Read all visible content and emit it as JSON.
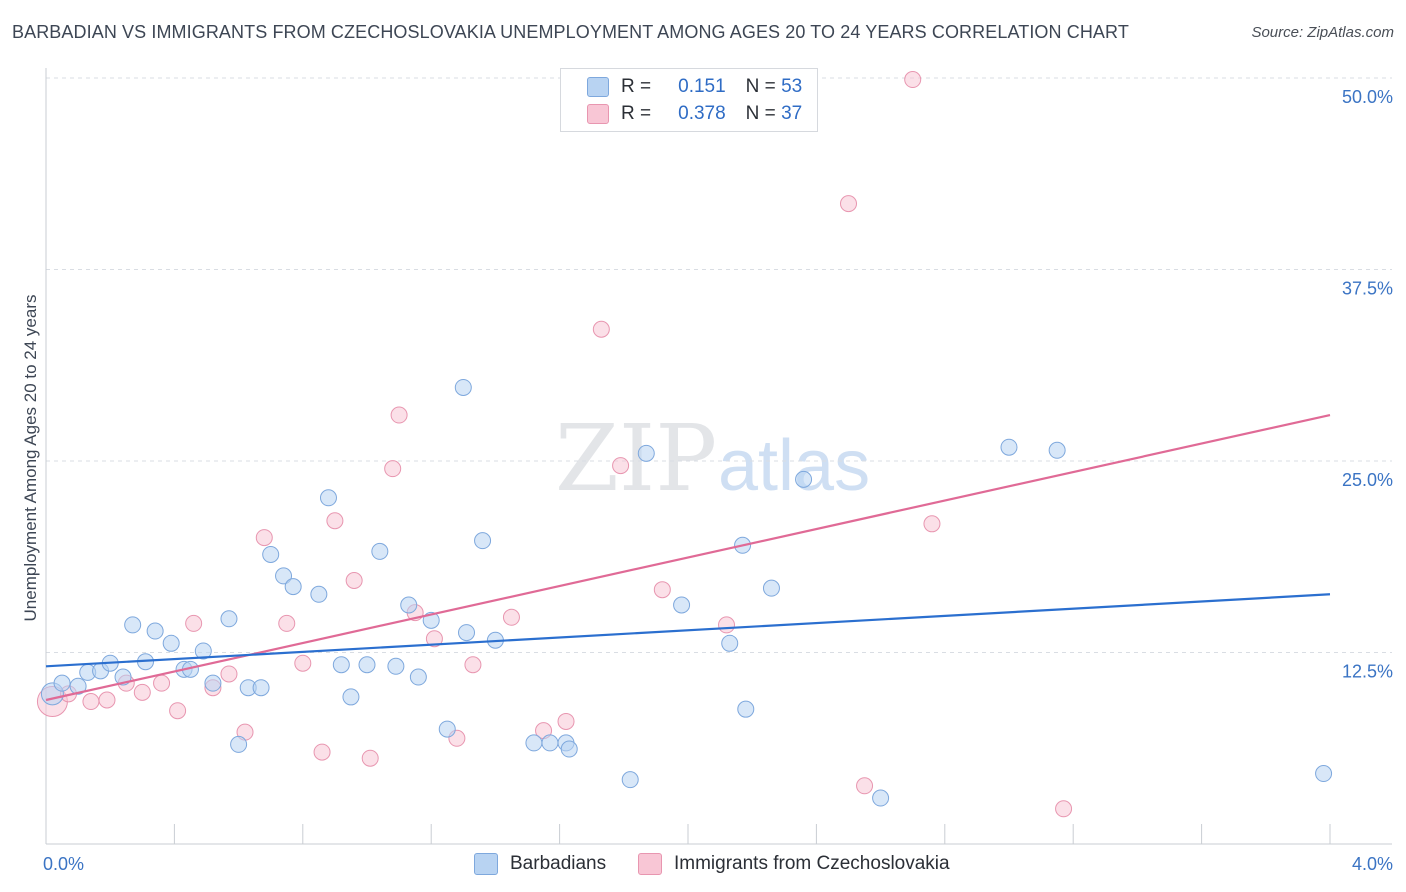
{
  "title": "BARBADIAN VS IMMIGRANTS FROM CZECHOSLOVAKIA UNEMPLOYMENT AMONG AGES 20 TO 24 YEARS CORRELATION CHART",
  "source": "Source: ZipAtlas.com",
  "watermark": {
    "zip": "ZIP",
    "atlas": "atlas"
  },
  "legend": {
    "r_label": "R =",
    "n_label": "N =",
    "rows": [
      {
        "r": "0.151",
        "n": "53"
      },
      {
        "r": "0.378",
        "n": "37"
      }
    ]
  },
  "bottom_legend": [
    "Barbadians",
    "Immigrants from Czechoslovakia"
  ],
  "colors": {
    "blue_fill": "#b8d3f2",
    "blue_stroke": "#7ea8dd",
    "blue_line": "#2b6fcf",
    "pink_fill": "#f8c6d5",
    "pink_stroke": "#e896b0",
    "pink_line": "#e06a96",
    "tick_text": "#3b74c4",
    "grid": "#d9dde3"
  },
  "chart_data": {
    "type": "scatter",
    "title": "BARBADIAN VS IMMIGRANTS FROM CZECHOSLOVAKIA UNEMPLOYMENT AMONG AGES 20 TO 24 YEARS CORRELATION CHART",
    "xlabel": "",
    "ylabel": "Unemployment Among Ages 20 to 24 years",
    "xlim": [
      0.0,
      4.0
    ],
    "ylim": [
      0.0,
      50.0
    ],
    "x_tick_labels": [
      "0.0%",
      "4.0%"
    ],
    "y_ticks": [
      12.5,
      25.0,
      37.5,
      50.0
    ],
    "y_tick_labels": [
      "12.5%",
      "25.0%",
      "37.5%",
      "50.0%"
    ],
    "series": [
      {
        "name": "Barbadians",
        "r": 0.151,
        "n": 53,
        "trend": {
          "x": [
            0.0,
            4.0
          ],
          "y": [
            11.6,
            16.3
          ]
        },
        "points": [
          {
            "x": 0.02,
            "y": 9.8
          },
          {
            "x": 0.05,
            "y": 10.5
          },
          {
            "x": 0.1,
            "y": 10.3
          },
          {
            "x": 0.13,
            "y": 11.2
          },
          {
            "x": 0.17,
            "y": 11.3
          },
          {
            "x": 0.2,
            "y": 11.8
          },
          {
            "x": 0.24,
            "y": 10.9
          },
          {
            "x": 0.27,
            "y": 14.3
          },
          {
            "x": 0.31,
            "y": 11.9
          },
          {
            "x": 0.34,
            "y": 13.9
          },
          {
            "x": 0.39,
            "y": 13.1
          },
          {
            "x": 0.43,
            "y": 11.4
          },
          {
            "x": 0.45,
            "y": 11.4
          },
          {
            "x": 0.49,
            "y": 12.6
          },
          {
            "x": 0.52,
            "y": 10.5
          },
          {
            "x": 0.57,
            "y": 14.7
          },
          {
            "x": 0.6,
            "y": 6.5
          },
          {
            "x": 0.63,
            "y": 10.2
          },
          {
            "x": 0.67,
            "y": 10.2
          },
          {
            "x": 0.7,
            "y": 18.9
          },
          {
            "x": 0.74,
            "y": 17.5
          },
          {
            "x": 0.77,
            "y": 16.8
          },
          {
            "x": 0.85,
            "y": 16.3
          },
          {
            "x": 0.88,
            "y": 22.6
          },
          {
            "x": 0.92,
            "y": 11.7
          },
          {
            "x": 0.95,
            "y": 9.6
          },
          {
            "x": 1.0,
            "y": 11.7
          },
          {
            "x": 1.04,
            "y": 19.1
          },
          {
            "x": 1.09,
            "y": 11.6
          },
          {
            "x": 1.13,
            "y": 15.6
          },
          {
            "x": 1.16,
            "y": 10.9
          },
          {
            "x": 1.2,
            "y": 14.6
          },
          {
            "x": 1.25,
            "y": 7.5
          },
          {
            "x": 1.3,
            "y": 29.8
          },
          {
            "x": 1.31,
            "y": 13.8
          },
          {
            "x": 1.36,
            "y": 19.8
          },
          {
            "x": 1.4,
            "y": 13.3
          },
          {
            "x": 1.52,
            "y": 6.6
          },
          {
            "x": 1.57,
            "y": 6.6
          },
          {
            "x": 1.62,
            "y": 6.6
          },
          {
            "x": 1.63,
            "y": 6.2
          },
          {
            "x": 1.82,
            "y": 4.2
          },
          {
            "x": 1.87,
            "y": 25.5
          },
          {
            "x": 1.98,
            "y": 15.6
          },
          {
            "x": 2.13,
            "y": 13.1
          },
          {
            "x": 2.17,
            "y": 19.5
          },
          {
            "x": 2.18,
            "y": 8.8
          },
          {
            "x": 2.26,
            "y": 16.7
          },
          {
            "x": 2.36,
            "y": 23.8
          },
          {
            "x": 2.6,
            "y": 3.0
          },
          {
            "x": 3.0,
            "y": 25.9
          },
          {
            "x": 3.15,
            "y": 25.7
          },
          {
            "x": 3.98,
            "y": 4.6
          }
        ]
      },
      {
        "name": "Immigrants from Czechoslovakia",
        "r": 0.378,
        "n": 37,
        "trend": {
          "x": [
            0.0,
            4.0
          ],
          "y": [
            9.4,
            28.0
          ]
        },
        "points": [
          {
            "x": 0.02,
            "y": 9.3
          },
          {
            "x": 0.07,
            "y": 9.8
          },
          {
            "x": 0.14,
            "y": 9.3
          },
          {
            "x": 0.19,
            "y": 9.4
          },
          {
            "x": 0.25,
            "y": 10.5
          },
          {
            "x": 0.3,
            "y": 9.9
          },
          {
            "x": 0.36,
            "y": 10.5
          },
          {
            "x": 0.41,
            "y": 8.7
          },
          {
            "x": 0.46,
            "y": 14.4
          },
          {
            "x": 0.52,
            "y": 10.2
          },
          {
            "x": 0.57,
            "y": 11.1
          },
          {
            "x": 0.62,
            "y": 7.3
          },
          {
            "x": 0.68,
            "y": 20.0
          },
          {
            "x": 0.75,
            "y": 14.4
          },
          {
            "x": 0.8,
            "y": 11.8
          },
          {
            "x": 0.86,
            "y": 6.0
          },
          {
            "x": 0.9,
            "y": 21.1
          },
          {
            "x": 0.96,
            "y": 17.2
          },
          {
            "x": 1.01,
            "y": 5.6
          },
          {
            "x": 1.08,
            "y": 24.5
          },
          {
            "x": 1.1,
            "y": 28.0
          },
          {
            "x": 1.15,
            "y": 15.1
          },
          {
            "x": 1.21,
            "y": 13.4
          },
          {
            "x": 1.28,
            "y": 6.9
          },
          {
            "x": 1.33,
            "y": 11.7
          },
          {
            "x": 1.45,
            "y": 14.8
          },
          {
            "x": 1.55,
            "y": 7.4
          },
          {
            "x": 1.62,
            "y": 8.0
          },
          {
            "x": 1.73,
            "y": 33.6
          },
          {
            "x": 1.79,
            "y": 24.7
          },
          {
            "x": 1.92,
            "y": 16.6
          },
          {
            "x": 2.12,
            "y": 14.3
          },
          {
            "x": 2.5,
            "y": 41.8
          },
          {
            "x": 2.55,
            "y": 3.8
          },
          {
            "x": 2.7,
            "y": 49.9
          },
          {
            "x": 2.76,
            "y": 20.9
          },
          {
            "x": 3.17,
            "y": 2.3
          }
        ]
      }
    ]
  }
}
